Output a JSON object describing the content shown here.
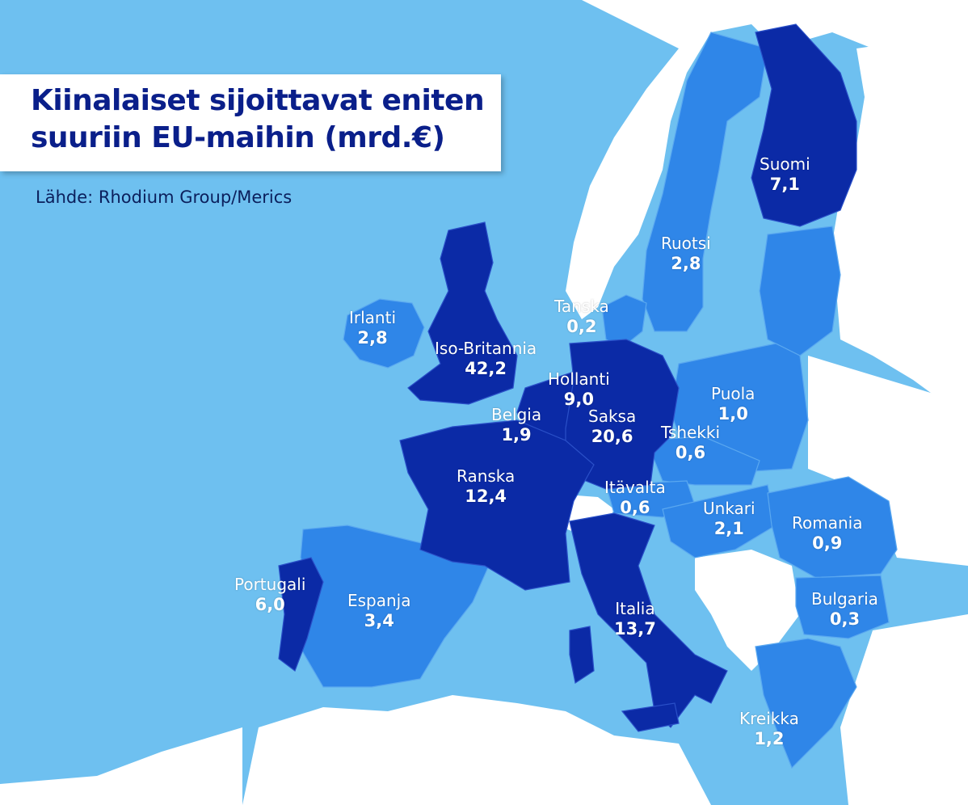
{
  "title": {
    "line1": "Kiinalaiset sijoittavat eniten",
    "line2": "suuriin EU-maihin (mrd.€)"
  },
  "source": "Lähde: Rhodium Group/Merics",
  "colors": {
    "sea": "#6ec0f0",
    "non_eu_land": "#ffffff",
    "tier_low": "#2f86e8",
    "tier_high": "#0b2aa6",
    "title_text": "#0a1f8a"
  },
  "countries": [
    {
      "name": "Suomi",
      "value": "7,1"
    },
    {
      "name": "Ruotsi",
      "value": "2,8"
    },
    {
      "name": "Tanska",
      "value": "0,2"
    },
    {
      "name": "Irlanti",
      "value": "2,8"
    },
    {
      "name": "Iso-Britannia",
      "value": "42,2"
    },
    {
      "name": "Hollanti",
      "value": "9,0"
    },
    {
      "name": "Belgia",
      "value": "1,9"
    },
    {
      "name": "Saksa",
      "value": "20,6"
    },
    {
      "name": "Puola",
      "value": "1,0"
    },
    {
      "name": "Tshekki",
      "value": "0,6"
    },
    {
      "name": "Ranska",
      "value": "12,4"
    },
    {
      "name": "Itävalta",
      "value": "0,6"
    },
    {
      "name": "Unkari",
      "value": "2,1"
    },
    {
      "name": "Romania",
      "value": "0,9"
    },
    {
      "name": "Portugali",
      "value": "6,0"
    },
    {
      "name": "Espanja",
      "value": "3,4"
    },
    {
      "name": "Italia",
      "value": "13,7"
    },
    {
      "name": "Bulgaria",
      "value": "0,3"
    },
    {
      "name": "Kreikka",
      "value": "1,2"
    }
  ]
}
